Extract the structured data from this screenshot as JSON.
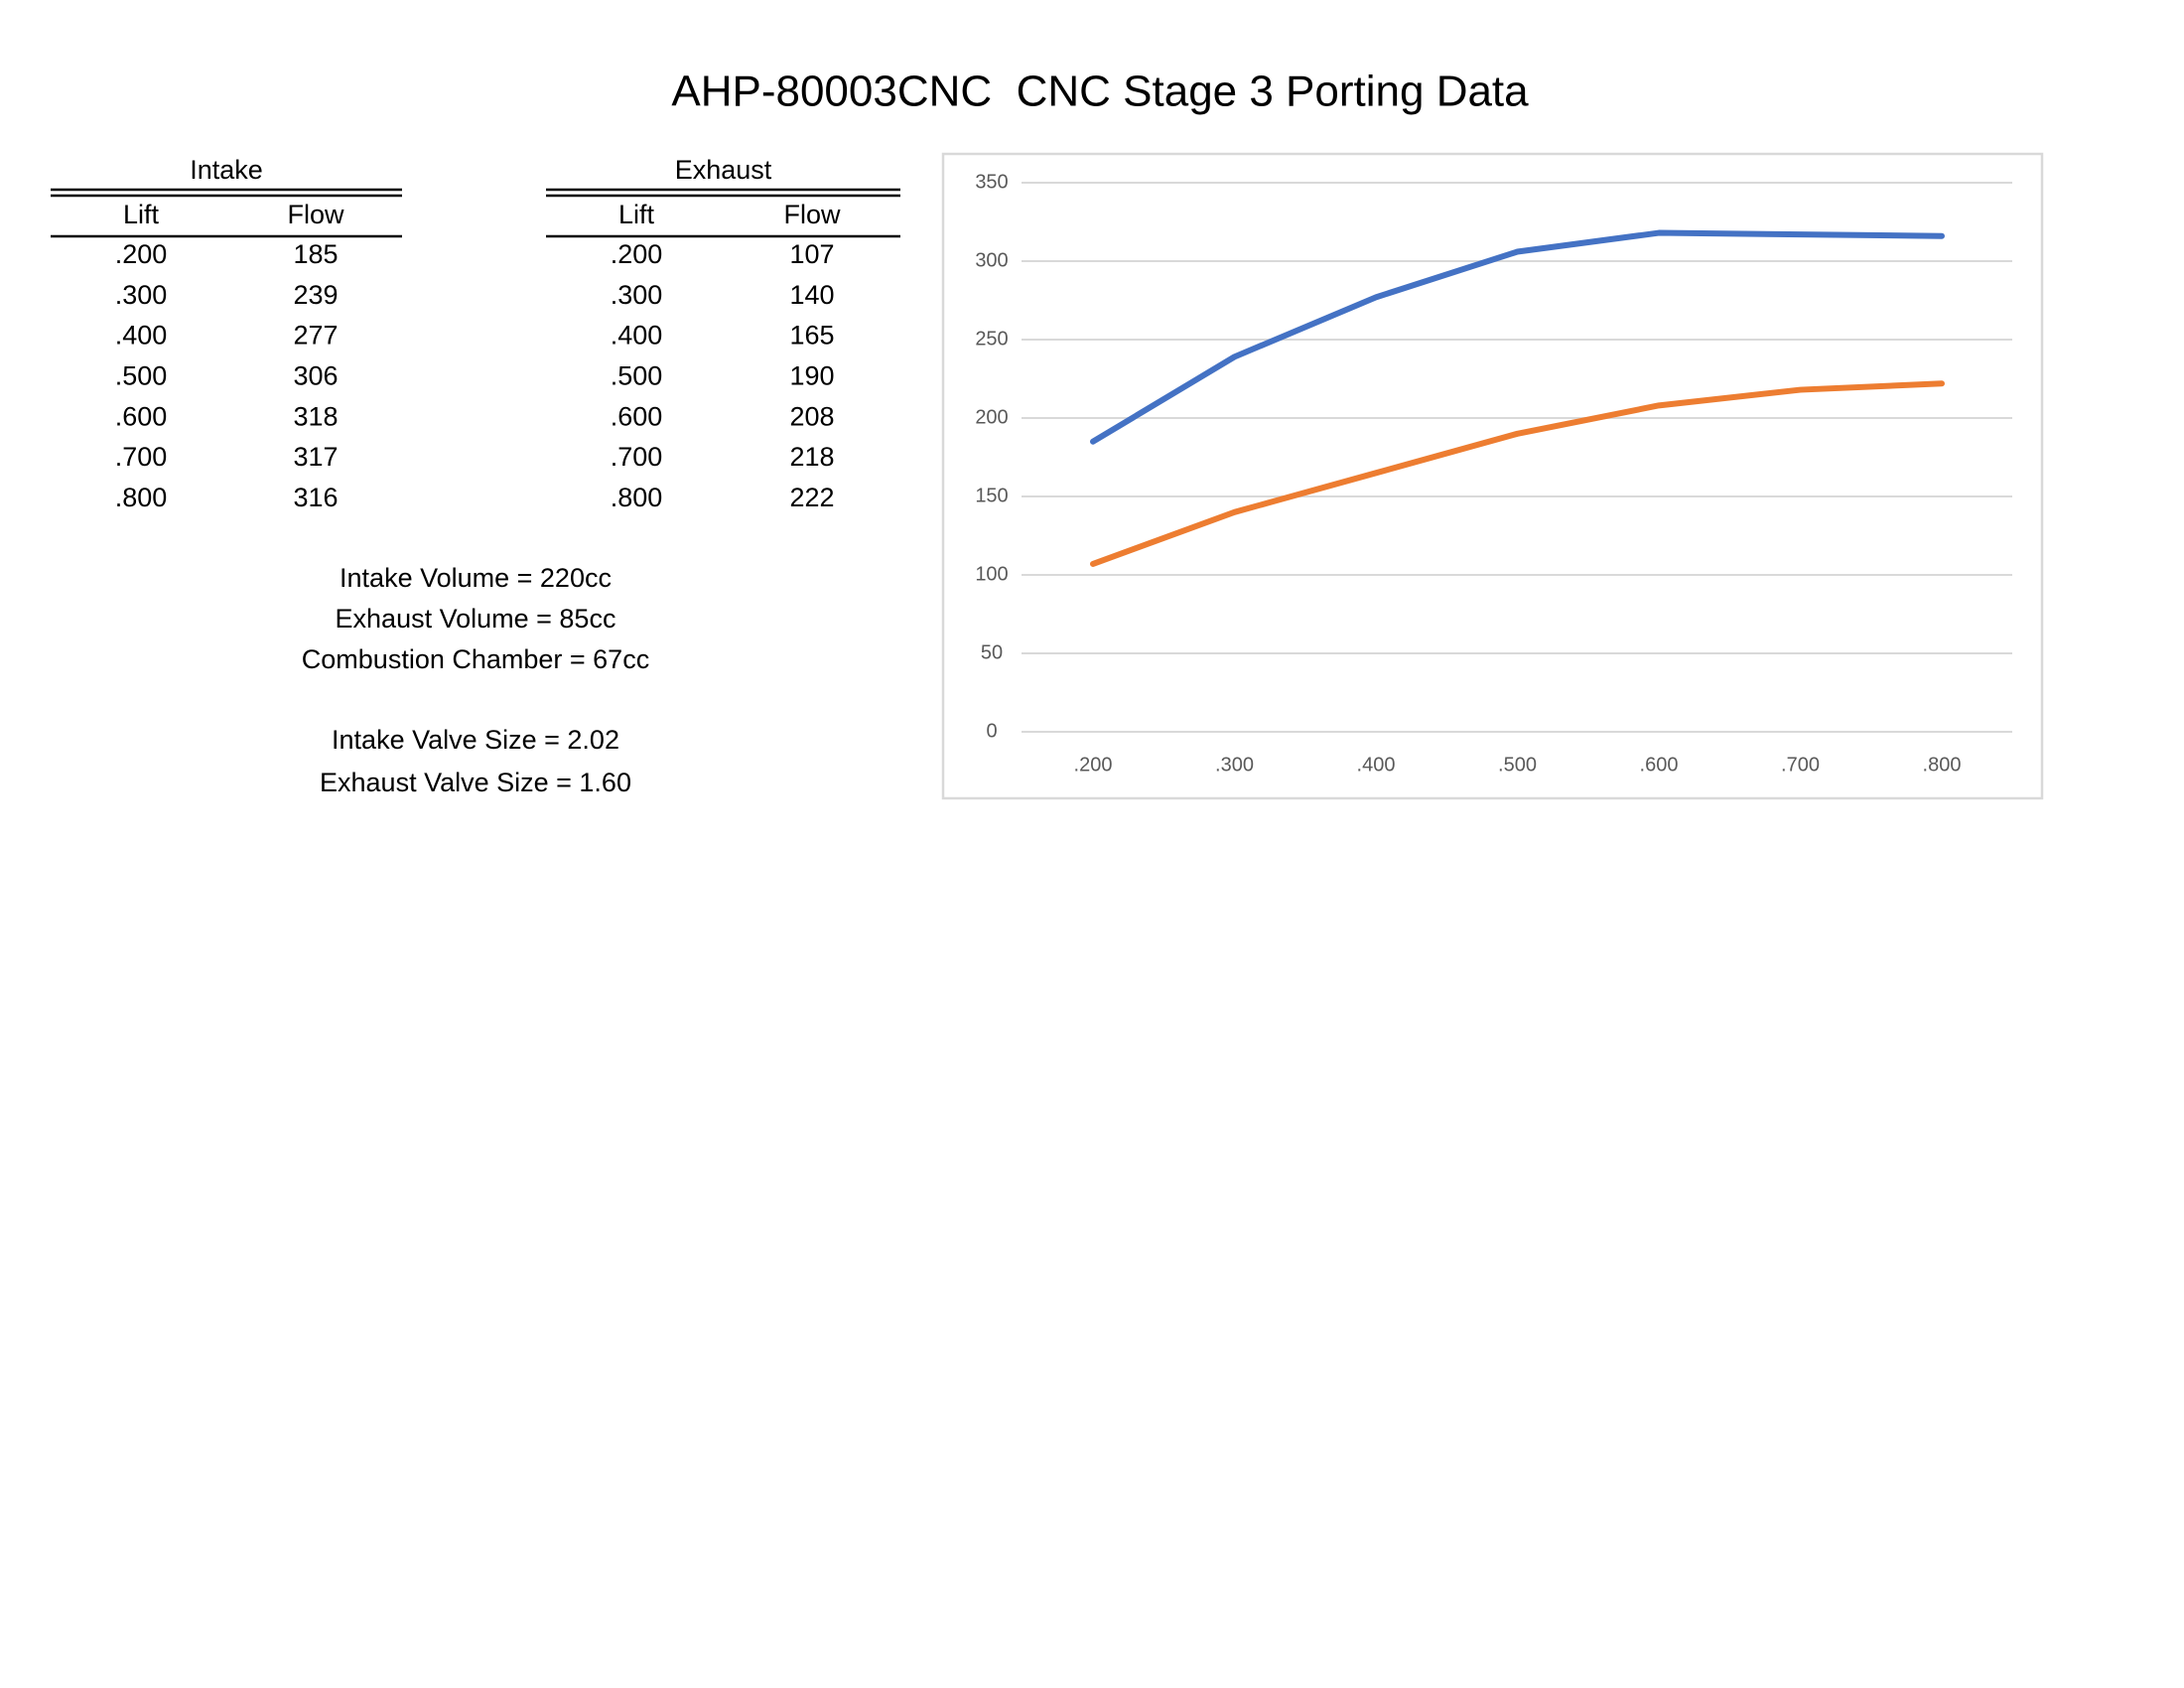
{
  "title": "AHP-80003CNC  CNC Stage 3 Porting Data",
  "intake": {
    "title": "Intake",
    "columns": [
      "Lift",
      "Flow"
    ],
    "rows": [
      [
        ".200",
        185
      ],
      [
        ".300",
        239
      ],
      [
        ".400",
        277
      ],
      [
        ".500",
        306
      ],
      [
        ".600",
        318
      ],
      [
        ".700",
        317
      ],
      [
        ".800",
        316
      ]
    ]
  },
  "exhaust": {
    "title": "Exhaust",
    "columns": [
      "Lift",
      "Flow"
    ],
    "rows": [
      [
        ".200",
        107
      ],
      [
        ".300",
        140
      ],
      [
        ".400",
        165
      ],
      [
        ".500",
        190
      ],
      [
        ".600",
        208
      ],
      [
        ".700",
        218
      ],
      [
        ".800",
        222
      ]
    ]
  },
  "notes": [
    "Intake Volume = 220cc",
    "Exhaust Volume = 85cc",
    "Combustion Chamber = 67cc",
    "Intake Valve Size = 2.02",
    "Exhaust Valve Size = 1.60"
  ],
  "chart_data": {
    "type": "line",
    "categories": [
      ".200",
      ".300",
      ".400",
      ".500",
      ".600",
      ".700",
      ".800"
    ],
    "series": [
      {
        "color": "#4472c4",
        "values": [
          185,
          239,
          277,
          306,
          318,
          317,
          316
        ]
      },
      {
        "color": "#ed7d31",
        "values": [
          107,
          140,
          165,
          190,
          208,
          218,
          222
        ]
      }
    ],
    "ylim": [
      0,
      350
    ],
    "yticks": [
      0,
      50,
      100,
      150,
      200,
      250,
      300,
      350
    ],
    "grid": true
  }
}
